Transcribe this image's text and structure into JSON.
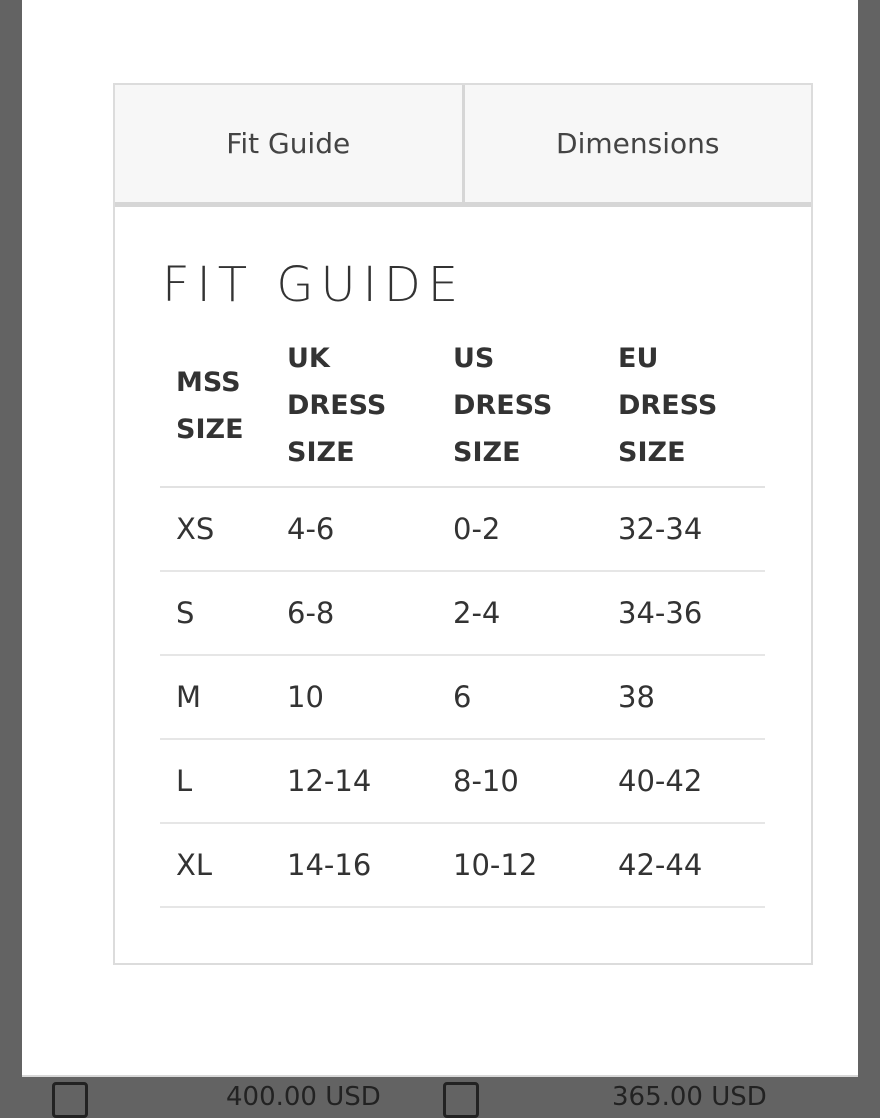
{
  "tabs": [
    {
      "label": "Fit Guide"
    },
    {
      "label": "Dimensions"
    }
  ],
  "title": "FIT GUIDE",
  "table": {
    "headers": [
      [
        "MSS",
        "SIZE"
      ],
      [
        "UK",
        "DRESS",
        "SIZE"
      ],
      [
        "US",
        "DRESS",
        "SIZE"
      ],
      [
        "EU",
        "DRESS",
        "SIZE"
      ]
    ],
    "rows": [
      [
        "XS",
        "4-6",
        "0-2",
        "32-34"
      ],
      [
        "S",
        "6-8",
        "2-4",
        "34-36"
      ],
      [
        "M",
        "10",
        "6",
        "38"
      ],
      [
        "L",
        "12-14",
        "8-10",
        "40-42"
      ],
      [
        "XL",
        "14-16",
        "10-12",
        "42-44"
      ]
    ]
  },
  "behind": {
    "price1": "400.00 USD",
    "price2": "365.00 USD"
  }
}
